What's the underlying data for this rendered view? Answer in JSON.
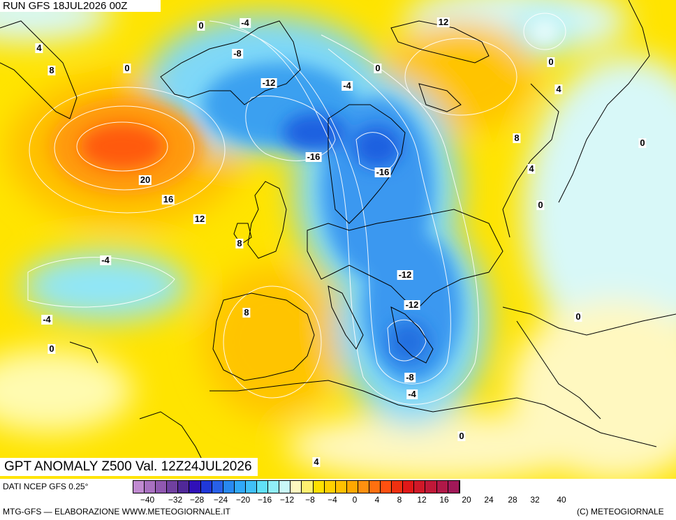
{
  "header": {
    "run": "RUN GFS 18JUL2026 00Z"
  },
  "map_title": "GPT ANOMALY Z500 Val. 12Z24JUL2026",
  "contour_labels": [
    "0",
    "-4",
    "4",
    "8",
    "0",
    "-8",
    "-12",
    "-4",
    "0",
    "12",
    "0",
    "4",
    "8",
    "20",
    "16",
    "12",
    "8",
    "-16",
    "-16",
    "4",
    "0",
    "0",
    "-4",
    "-12",
    "-12",
    "8",
    "0",
    "-4",
    "0",
    "-8",
    "-4",
    "0",
    "4"
  ],
  "footer": {
    "source": "DATI NCEP GFS 0.25°",
    "credit": "MTG-GFS — ELABORAZIONE WWW.METEOGIORNALE.IT",
    "copyright": "(C) METEOGIORNALE"
  },
  "scale": {
    "ticks": [
      "−40",
      "−32",
      "−28",
      "−24",
      "−20",
      "−16",
      "−12",
      "−8",
      "−4",
      "0",
      "4",
      "8",
      "12",
      "16",
      "20",
      "24",
      "28",
      "32",
      "40"
    ],
    "colors": [
      "#c08ad0",
      "#a870c0",
      "#9058b0",
      "#7040a0",
      "#502898",
      "#3010b8",
      "#2038d8",
      "#2860e8",
      "#2888f0",
      "#30a8f8",
      "#40c0f8",
      "#60e0f8",
      "#90eef8",
      "#c8f8f8",
      "#fff8c0",
      "#fff070",
      "#ffe000",
      "#ffd000",
      "#ffc000",
      "#ffa800",
      "#ff9010",
      "#ff7010",
      "#ff5010",
      "#f03010",
      "#e01818",
      "#d01828",
      "#c01838",
      "#b01848",
      "#a01858"
    ]
  },
  "colors": {
    "ocean_blue": "#2a7fe8",
    "warm_yellow": "#ffe100",
    "warm_orange": "#ffb000",
    "hot_red": "#ff4a10",
    "pale": "#fffbb8"
  }
}
